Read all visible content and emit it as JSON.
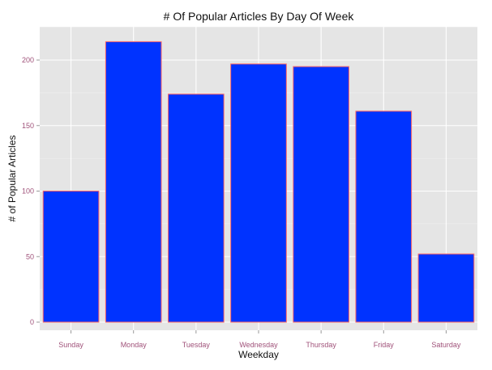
{
  "chart_data": {
    "type": "bar",
    "title": "# Of Popular Articles By Day Of Week",
    "xlabel": "Weekday",
    "ylabel": "# of Popular Articles",
    "categories": [
      "Sunday",
      "Monday",
      "Tuesday",
      "Wednesday",
      "Thursday",
      "Friday",
      "Saturday"
    ],
    "values": [
      100,
      214,
      174,
      197,
      195,
      161,
      52
    ],
    "ylim": [
      0,
      225
    ],
    "yticks": [
      0,
      50,
      100,
      150,
      200
    ],
    "grid": true,
    "bar_fill": "#0033ff",
    "bar_outline": "#ff6666",
    "panel_background": "#e5e5e5"
  }
}
